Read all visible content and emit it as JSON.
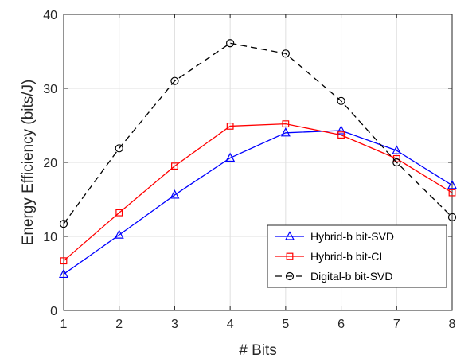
{
  "chart_data": {
    "type": "line",
    "title": "",
    "xlabel": "# Bits",
    "ylabel": "Energy Efficiency (bits/J)",
    "x": [
      1,
      2,
      3,
      4,
      5,
      6,
      7,
      8
    ],
    "xlim": [
      1,
      8
    ],
    "ylim": [
      0,
      40
    ],
    "xticks": [
      1,
      2,
      3,
      4,
      5,
      6,
      7,
      8
    ],
    "yticks": [
      0,
      10,
      20,
      30,
      40
    ],
    "grid": true,
    "legend_position": "bottom-right",
    "series": [
      {
        "name": "Hybrid-b bit-SVD",
        "color": "#0000ff",
        "marker": "triangle",
        "line_style": "solid",
        "values": [
          4.9,
          10.2,
          15.6,
          20.6,
          24.0,
          24.3,
          21.6,
          16.9
        ]
      },
      {
        "name": "Hybrid-b bit-CI",
        "color": "#ff0000",
        "marker": "square",
        "line_style": "solid",
        "values": [
          6.7,
          13.2,
          19.5,
          24.9,
          25.2,
          23.7,
          20.5,
          15.9
        ]
      },
      {
        "name": "Digital-b bit-SVD",
        "color": "#000000",
        "marker": "circle",
        "line_style": "dashed",
        "values": [
          11.7,
          21.9,
          31.0,
          36.1,
          34.7,
          28.3,
          20.0,
          12.6
        ]
      }
    ]
  }
}
